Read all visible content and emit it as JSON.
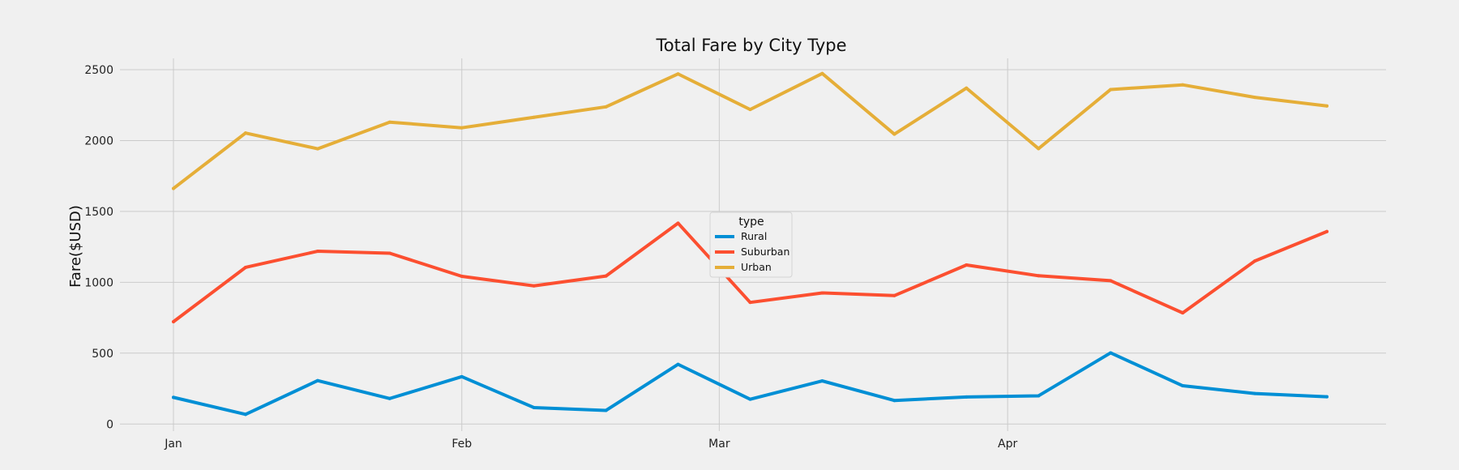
{
  "chart_data": {
    "type": "line",
    "title": "Total Fare by City Type",
    "xlabel": "",
    "ylabel": "Fare($USD)",
    "ylim": [
      -50,
      2580
    ],
    "yticks": [
      0,
      500,
      1000,
      1500,
      2000,
      2500
    ],
    "x": [
      "2019-01-06",
      "2019-01-13",
      "2019-01-20",
      "2019-01-27",
      "2019-02-03",
      "2019-02-10",
      "2019-02-17",
      "2019-02-24",
      "2019-03-03",
      "2019-03-10",
      "2019-03-17",
      "2019-03-24",
      "2019-03-31",
      "2019-04-07",
      "2019-04-14",
      "2019-04-21",
      "2019-04-28"
    ],
    "xticks": [
      {
        "label": "Jan",
        "date": "2019-01-06"
      },
      {
        "label": "Feb",
        "date": "2019-02-03"
      },
      {
        "label": "Mar",
        "date": "2019-02-28"
      },
      {
        "label": "Apr",
        "date": "2019-03-28"
      }
    ],
    "grid": true,
    "legend": {
      "title": "type",
      "placement": "center"
    },
    "series": [
      {
        "name": "Rural",
        "color": "#008fd5",
        "values": [
          188,
          68,
          306,
          180,
          334,
          116,
          96,
          421,
          175,
          304,
          166,
          191,
          199,
          502,
          270,
          215,
          192
        ]
      },
      {
        "name": "Suburban",
        "color": "#fc4f30",
        "values": [
          722,
          1105,
          1219,
          1205,
          1042,
          975,
          1044,
          1417,
          858,
          925,
          906,
          1122,
          1046,
          1011,
          784,
          1150,
          1358
        ]
      },
      {
        "name": "Urban",
        "color": "#e5ae38",
        "values": [
          1662,
          2053,
          1942,
          2130,
          2090,
          2164,
          2238,
          2470,
          2219,
          2473,
          2045,
          2370,
          1943,
          2360,
          2393,
          2305,
          2244
        ]
      }
    ]
  }
}
